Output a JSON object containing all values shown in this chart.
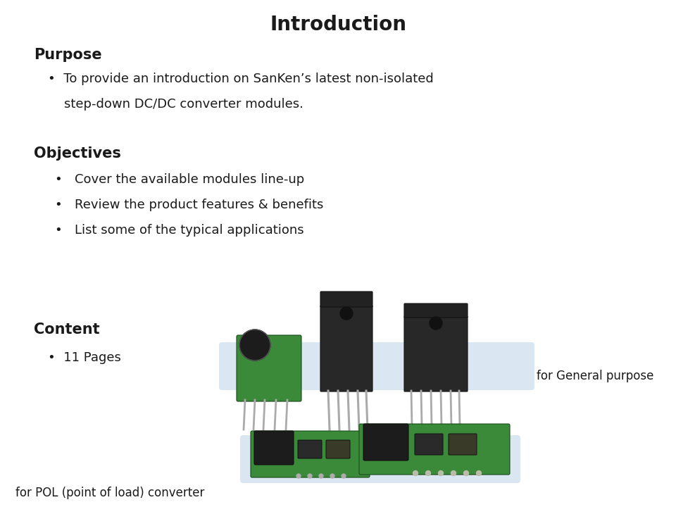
{
  "title": "Introduction",
  "title_fontsize": 20,
  "title_fontweight": "bold",
  "bg_color": "#ffffff",
  "text_color": "#1a1a1a",
  "section_headers": [
    "Purpose",
    "Objectives",
    "Content"
  ],
  "header_fontsize": 15,
  "header_fontweight": "bold",
  "purpose_line1": "•  To provide an introduction on SanKen’s latest non-isolated",
  "purpose_line2": "    step-down DC/DC converter modules.",
  "objectives_bullets": [
    "•   Cover the available modules line-up",
    "•   Review the product features & benefits",
    "•   List some of the typical applications"
  ],
  "content_bullet": "•  11 Pages",
  "label_general": "for General purpose",
  "label_pol": "for POL (point of load) converter",
  "bullet_fontsize": 13,
  "band1_color": "#ccdcee",
  "band2_color": "#ccdcee"
}
